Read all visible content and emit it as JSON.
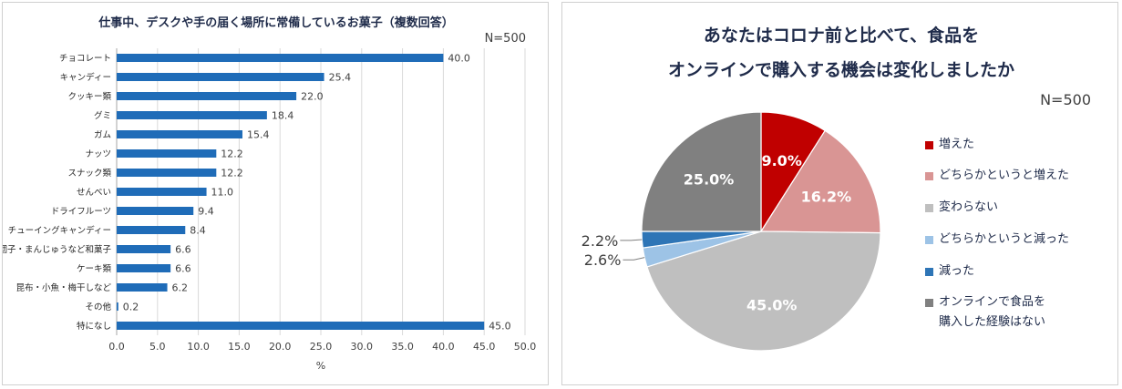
{
  "chart_data": [
    {
      "type": "bar",
      "orientation": "horizontal",
      "title": "仕事中、デスクや手の届く場所に常備しているお菓子（複数回答）",
      "note": "N=500",
      "xlabel": "%",
      "xlim": [
        0,
        50
      ],
      "xticks": [
        "0.0",
        "5.0",
        "10.0",
        "15.0",
        "20.0",
        "25.0",
        "30.0",
        "35.0",
        "40.0",
        "45.0",
        "50.0"
      ],
      "categories": [
        "チョコレート",
        "キャンディー",
        "クッキー類",
        "グミ",
        "ガム",
        "ナッツ",
        "スナック類",
        "せんべい",
        "ドライフルーツ",
        "チューイングキャンディー",
        "団子・まんじゅうなど和菓子",
        "ケーキ類",
        "昆布・小魚・梅干しなど",
        "その他",
        "特になし"
      ],
      "values": [
        40.0,
        25.4,
        22.0,
        18.4,
        15.4,
        12.2,
        12.2,
        11.0,
        9.4,
        8.4,
        6.6,
        6.6,
        6.2,
        0.2,
        45.0
      ],
      "value_labels": [
        "40.0",
        "25.4",
        "22.0",
        "18.4",
        "15.4",
        "12.2",
        "12.2",
        "11.0",
        "9.4",
        "8.4",
        "6.6",
        "6.6",
        "6.2",
        "0.2",
        "45.0"
      ],
      "bar_color": "#1f6cb8",
      "grid": true
    },
    {
      "type": "pie",
      "title_lines": [
        "あなたはコロナ前と比べて、食品を",
        "オンラインで購入する機会は変化しましたか"
      ],
      "note": "N=500",
      "slices": [
        {
          "label": "増えた",
          "value": 9.0,
          "value_label": "9.0%",
          "color": "#c00000"
        },
        {
          "label": "どちらかというと増えた",
          "value": 16.2,
          "value_label": "16.2%",
          "color": "#d99594"
        },
        {
          "label": "変わらない",
          "value": 45.0,
          "value_label": "45.0%",
          "color": "#bfbfbf"
        },
        {
          "label": "どちらかというと減った",
          "value": 2.6,
          "value_label": "2.6%",
          "color": "#9dc3e6"
        },
        {
          "label": "減った",
          "value": 2.2,
          "value_label": "2.2%",
          "color": "#2e75b6"
        },
        {
          "label": "オンラインで食品を\n購入した経験はない",
          "value": 25.0,
          "value_label": "25.0%",
          "color": "#808080"
        }
      ],
      "legend_position": "right"
    }
  ]
}
